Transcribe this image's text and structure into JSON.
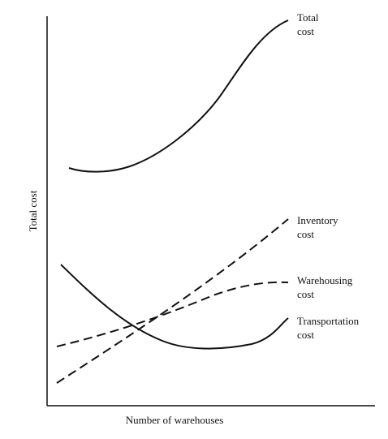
{
  "y_axis": {
    "label": "Total cost"
  },
  "x_axis": {
    "label": "Number of warehouses"
  },
  "curves": [
    {
      "label": [
        "Total",
        "cost"
      ]
    },
    {
      "label": [
        "Inventory",
        "cost"
      ]
    },
    {
      "label": [
        "Warehousing",
        "cost"
      ]
    },
    {
      "label": [
        "Transportation",
        "cost"
      ]
    }
  ]
}
